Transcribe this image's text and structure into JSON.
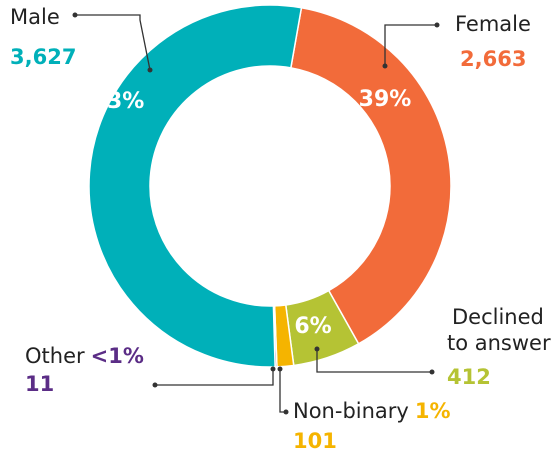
{
  "chart_data": {
    "type": "pie",
    "donut": true,
    "categories": [
      "Female",
      "Declined to answer",
      "Non-binary",
      "Other",
      "Male"
    ],
    "values": [
      2663,
      412,
      101,
      11,
      3627
    ],
    "value_labels": [
      "2,663",
      "412",
      "101",
      "11",
      "3,627"
    ],
    "percent_labels": [
      "39%",
      "6%",
      "1%",
      "<1%",
      "53%"
    ],
    "colors": [
      "#f26b3a",
      "#b5c334",
      "#f5b400",
      "#5b2d86",
      "#00b0b9"
    ]
  }
}
